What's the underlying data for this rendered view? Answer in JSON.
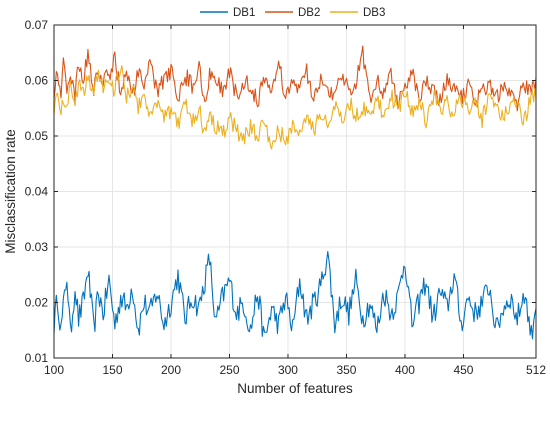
{
  "chart_data": {
    "type": "line",
    "xlabel": "Number of features",
    "ylabel": "Misclassification rate",
    "xlim": [
      100,
      512
    ],
    "ylim": [
      0.01,
      0.07
    ],
    "xticks": [
      100,
      150,
      200,
      250,
      300,
      350,
      400,
      450,
      512
    ],
    "xtick_labels": [
      "100",
      "150",
      "200",
      "250",
      "300",
      "350",
      "400",
      "450",
      "512"
    ],
    "yticks": [
      0.01,
      0.02,
      0.03,
      0.04,
      0.05,
      0.06,
      0.07
    ],
    "ytick_labels": [
      "0.01",
      "0.02",
      "0.03",
      "0.04",
      "0.05",
      "0.06",
      "0.07"
    ],
    "grid": true,
    "legend_position": "top-center",
    "x_step": 1,
    "series": [
      {
        "name": "DB1",
        "color": "#0072BD",
        "x_start": 100,
        "points_x": [
          100,
          103,
          106,
          108,
          111,
          114,
          118,
          121,
          125,
          129,
          134,
          138,
          142,
          147,
          152,
          157,
          162,
          167,
          172,
          177,
          182,
          188,
          194,
          200,
          206,
          212,
          218,
          224,
          228,
          233,
          238,
          244,
          250,
          256,
          262,
          268,
          274,
          280,
          286,
          292,
          298,
          304,
          310,
          316,
          322,
          328,
          334,
          340,
          346,
          352,
          358,
          364,
          370,
          376,
          382,
          388,
          394,
          400,
          406,
          412,
          418,
          424,
          430,
          436,
          442,
          448,
          454,
          460,
          466,
          472,
          478,
          484,
          490,
          496,
          502,
          508,
          512
        ],
        "points_y": [
          0.016,
          0.021,
          0.015,
          0.019,
          0.025,
          0.014,
          0.023,
          0.017,
          0.02,
          0.026,
          0.015,
          0.022,
          0.018,
          0.024,
          0.016,
          0.021,
          0.019,
          0.023,
          0.015,
          0.02,
          0.018,
          0.022,
          0.016,
          0.02,
          0.025,
          0.017,
          0.021,
          0.019,
          0.023,
          0.028,
          0.016,
          0.021,
          0.024,
          0.018,
          0.02,
          0.015,
          0.022,
          0.013,
          0.019,
          0.016,
          0.021,
          0.015,
          0.024,
          0.017,
          0.02,
          0.023,
          0.029,
          0.016,
          0.021,
          0.018,
          0.024,
          0.017,
          0.02,
          0.015,
          0.022,
          0.018,
          0.021,
          0.028,
          0.016,
          0.02,
          0.024,
          0.017,
          0.022,
          0.019,
          0.025,
          0.016,
          0.021,
          0.018,
          0.02,
          0.023,
          0.015,
          0.019,
          0.021,
          0.017,
          0.022,
          0.014,
          0.02
        ]
      },
      {
        "name": "DB2",
        "color": "#D95319",
        "points_x": [
          100,
          103,
          106,
          108,
          111,
          114,
          118,
          121,
          125,
          129,
          134,
          138,
          142,
          147,
          152,
          157,
          162,
          167,
          172,
          177,
          182,
          188,
          194,
          200,
          206,
          212,
          218,
          224,
          228,
          233,
          238,
          244,
          250,
          256,
          262,
          268,
          274,
          280,
          286,
          292,
          298,
          304,
          310,
          316,
          322,
          328,
          334,
          340,
          346,
          352,
          358,
          364,
          370,
          376,
          382,
          388,
          394,
          400,
          406,
          412,
          418,
          424,
          430,
          436,
          442,
          448,
          454,
          460,
          466,
          472,
          478,
          484,
          490,
          496,
          502,
          508,
          512
        ],
        "points_y": [
          0.058,
          0.062,
          0.056,
          0.064,
          0.059,
          0.061,
          0.057,
          0.063,
          0.06,
          0.065,
          0.058,
          0.062,
          0.06,
          0.061,
          0.064,
          0.058,
          0.062,
          0.057,
          0.061,
          0.059,
          0.063,
          0.058,
          0.06,
          0.062,
          0.057,
          0.061,
          0.059,
          0.063,
          0.056,
          0.061,
          0.06,
          0.058,
          0.062,
          0.057,
          0.06,
          0.059,
          0.056,
          0.061,
          0.058,
          0.063,
          0.057,
          0.06,
          0.058,
          0.062,
          0.056,
          0.06,
          0.059,
          0.057,
          0.061,
          0.058,
          0.06,
          0.065,
          0.057,
          0.06,
          0.058,
          0.061,
          0.056,
          0.059,
          0.062,
          0.057,
          0.06,
          0.058,
          0.056,
          0.06,
          0.058,
          0.057,
          0.059,
          0.056,
          0.058,
          0.06,
          0.057,
          0.059,
          0.058,
          0.056,
          0.059,
          0.058,
          0.06
        ]
      },
      {
        "name": "DB3",
        "color": "#EDB120",
        "points_x": [
          100,
          103,
          106,
          108,
          111,
          114,
          118,
          121,
          125,
          129,
          134,
          138,
          142,
          147,
          152,
          157,
          162,
          167,
          172,
          177,
          182,
          188,
          194,
          200,
          206,
          212,
          218,
          224,
          228,
          233,
          238,
          244,
          250,
          256,
          262,
          268,
          274,
          280,
          286,
          292,
          298,
          304,
          310,
          316,
          322,
          328,
          334,
          340,
          346,
          352,
          358,
          364,
          370,
          376,
          382,
          388,
          394,
          400,
          406,
          412,
          418,
          424,
          430,
          436,
          442,
          448,
          454,
          460,
          466,
          472,
          478,
          484,
          490,
          496,
          502,
          508,
          512
        ],
        "points_y": [
          0.055,
          0.058,
          0.053,
          0.057,
          0.054,
          0.059,
          0.056,
          0.06,
          0.058,
          0.061,
          0.057,
          0.062,
          0.059,
          0.06,
          0.058,
          0.063,
          0.057,
          0.059,
          0.055,
          0.058,
          0.054,
          0.056,
          0.053,
          0.055,
          0.052,
          0.056,
          0.053,
          0.055,
          0.051,
          0.054,
          0.052,
          0.05,
          0.053,
          0.051,
          0.049,
          0.052,
          0.05,
          0.053,
          0.048,
          0.051,
          0.049,
          0.052,
          0.05,
          0.053,
          0.051,
          0.054,
          0.052,
          0.055,
          0.053,
          0.056,
          0.054,
          0.055,
          0.053,
          0.056,
          0.054,
          0.057,
          0.055,
          0.058,
          0.054,
          0.056,
          0.053,
          0.057,
          0.055,
          0.056,
          0.054,
          0.057,
          0.055,
          0.056,
          0.053,
          0.057,
          0.055,
          0.054,
          0.056,
          0.055,
          0.053,
          0.057,
          0.058
        ]
      }
    ]
  }
}
